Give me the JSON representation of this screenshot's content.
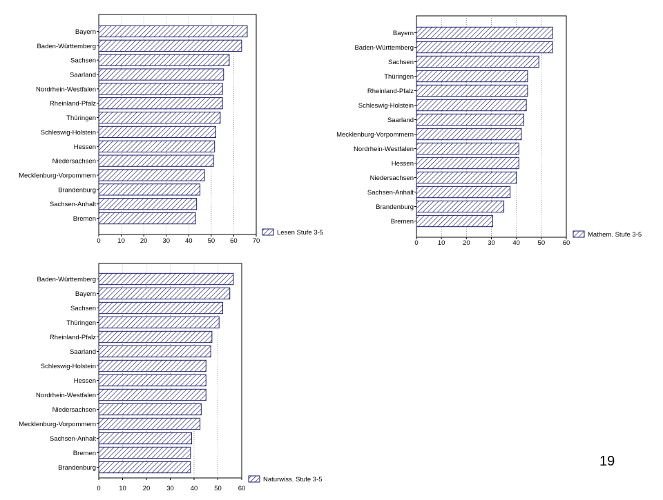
{
  "page_number": "19",
  "colors": {
    "bar_stroke": "#1a1a66",
    "hatch": "#1a1a66",
    "grid": "#9a9a9a",
    "axis": "#000000",
    "text": "#000000"
  },
  "chart_data": [
    {
      "type": "bar",
      "orientation": "horizontal",
      "categories": [
        "Bayern",
        "Baden-Württemberg",
        "Sachsen",
        "Saarland",
        "Nordrhein-Westfalen",
        "Rheinland-Pfalz",
        "Thüringen",
        "Schleswig-Holstein",
        "Hessen",
        "Niedersachsen",
        "Mecklenburg-Vorpommern",
        "Brandenburg",
        "Sachsen-Anhalt",
        "Bremen"
      ],
      "series": [
        {
          "name": "Lesen Stufe 3-5",
          "values": [
            66,
            63.5,
            58,
            55.5,
            55,
            55,
            54,
            52,
            51.5,
            51,
            47,
            45,
            43.5,
            43
          ]
        }
      ],
      "xlim": [
        0,
        70
      ],
      "xticks": [
        "0",
        "10",
        "20",
        "30",
        "40",
        "50",
        "60",
        "70"
      ],
      "grid": true,
      "legend": "bottom-right",
      "pattern": "hatched"
    },
    {
      "type": "bar",
      "orientation": "horizontal",
      "categories": [
        "Bayern",
        "Baden-Württemberg",
        "Sachsen",
        "Thüringen",
        "Rheinland-Pfalz",
        "Schleswig-Holstein",
        "Saarland",
        "Mecklenburg-Vorpommern",
        "Nordrhein-Westfalen",
        "Hessen",
        "Niedersachsen",
        "Sachsen-Anhalt",
        "Brandenburg",
        "Bremen"
      ],
      "series": [
        {
          "name": "Mathem. Stufe 3-5",
          "values": [
            54.5,
            54.5,
            49,
            44.5,
            44.5,
            44,
            43,
            42,
            41,
            41,
            40,
            37.5,
            35,
            30.5
          ]
        }
      ],
      "xlim": [
        0,
        60
      ],
      "xticks": [
        "0",
        "10",
        "20",
        "30",
        "40",
        "50",
        "60"
      ],
      "grid": true,
      "legend": "bottom-right",
      "pattern": "hatched"
    },
    {
      "type": "bar",
      "orientation": "horizontal",
      "categories": [
        "Baden-Württemberg",
        "Bayern",
        "Sachsen",
        "Thüringen",
        "Rheinland-Pfalz",
        "Saarland",
        "Schleswig-Holstein",
        "Hessen",
        "Nordrhein-Westfalen",
        "Niedersachsen",
        "Mecklenburg-Vorpommern",
        "Sachsen-Anhalt",
        "Bremen",
        "Brandenburg"
      ],
      "series": [
        {
          "name": "Naturwiss. Stufe 3-5",
          "values": [
            56.5,
            55,
            52,
            50.5,
            47.5,
            47,
            45,
            45,
            45,
            43,
            42.5,
            39,
            38.5,
            38.5
          ]
        }
      ],
      "xlim": [
        0,
        60
      ],
      "xticks": [
        "0",
        "10",
        "20",
        "30",
        "40",
        "50",
        "60"
      ],
      "grid": true,
      "legend": "bottom-right",
      "pattern": "hatched"
    }
  ]
}
